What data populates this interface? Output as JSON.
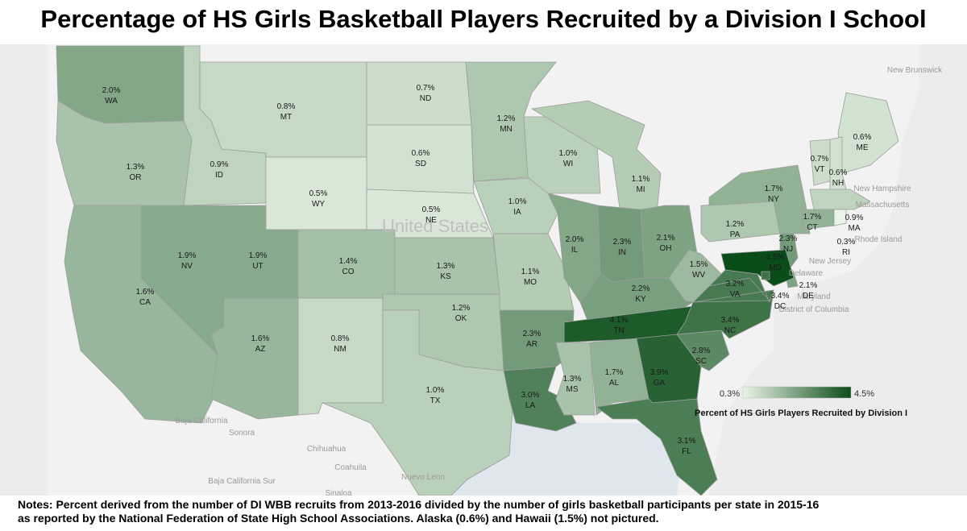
{
  "title": "Percentage of HS Girls Basketball Players Recruited by a Division I School",
  "notes": {
    "line1": "Notes: Percent derived from the number of DI WBB recruits from 2013-2016 divided by the number of girls basketball participants per state in 2015-16",
    "line2": "as reported by the National Federation of State High School Associations.  Alaska (0.6%) and Hawaii (1.5%) not pictured."
  },
  "legend": {
    "min_label": "0.3%",
    "max_label": "4.5%",
    "title": "Percent of HS Girls Players Recruited by Division I",
    "min_value": 0.3,
    "max_value": 4.5,
    "color_low": "#eaf4e6",
    "color_high": "#0b4d1a"
  },
  "background_labels": [
    "United States",
    "Baja California",
    "Sonora",
    "Chihuahua",
    "Coahuila",
    "Baja California Sur",
    "Nuevo Leon",
    "Sinaloa",
    "New Hampshire",
    "Massachusetts",
    "Rhode Island",
    "New Jersey",
    "Delaware",
    "Maryland",
    "District of Columbia",
    "New Brunswick"
  ],
  "chart_data": {
    "type": "choropleth",
    "unit": "%",
    "states": [
      {
        "abbr": "WA",
        "value": 2.0,
        "label": "2.0%"
      },
      {
        "abbr": "OR",
        "value": 1.3,
        "label": "1.3%"
      },
      {
        "abbr": "CA",
        "value": 1.6,
        "label": "1.6%"
      },
      {
        "abbr": "ID",
        "value": 0.9,
        "label": "0.9%"
      },
      {
        "abbr": "NV",
        "value": 1.9,
        "label": "1.9%"
      },
      {
        "abbr": "MT",
        "value": 0.8,
        "label": "0.8%"
      },
      {
        "abbr": "WY",
        "value": 0.5,
        "label": "0.5%"
      },
      {
        "abbr": "UT",
        "value": 1.9,
        "label": "1.9%"
      },
      {
        "abbr": "AZ",
        "value": 1.6,
        "label": "1.6%"
      },
      {
        "abbr": "CO",
        "value": 1.4,
        "label": "1.4%"
      },
      {
        "abbr": "NM",
        "value": 0.8,
        "label": "0.8%"
      },
      {
        "abbr": "ND",
        "value": 0.7,
        "label": "0.7%"
      },
      {
        "abbr": "SD",
        "value": 0.6,
        "label": "0.6%"
      },
      {
        "abbr": "NE",
        "value": 0.5,
        "label": "0.5%"
      },
      {
        "abbr": "KS",
        "value": 1.3,
        "label": "1.3%"
      },
      {
        "abbr": "OK",
        "value": 1.2,
        "label": "1.2%"
      },
      {
        "abbr": "TX",
        "value": 1.0,
        "label": "1.0%"
      },
      {
        "abbr": "MN",
        "value": 1.2,
        "label": "1.2%"
      },
      {
        "abbr": "IA",
        "value": 1.0,
        "label": "1.0%"
      },
      {
        "abbr": "MO",
        "value": 1.1,
        "label": "1.1%"
      },
      {
        "abbr": "AR",
        "value": 2.3,
        "label": "2.3%"
      },
      {
        "abbr": "LA",
        "value": 3.0,
        "label": "3.0%"
      },
      {
        "abbr": "WI",
        "value": 1.0,
        "label": "1.0%"
      },
      {
        "abbr": "IL",
        "value": 2.0,
        "label": "2.0%"
      },
      {
        "abbr": "MI",
        "value": 1.1,
        "label": "1.1%"
      },
      {
        "abbr": "IN",
        "value": 2.3,
        "label": "2.3%"
      },
      {
        "abbr": "OH",
        "value": 2.1,
        "label": "2.1%"
      },
      {
        "abbr": "KY",
        "value": 2.2,
        "label": "2.2%"
      },
      {
        "abbr": "TN",
        "value": 4.1,
        "label": "4.1%"
      },
      {
        "abbr": "MS",
        "value": 1.3,
        "label": "1.3%"
      },
      {
        "abbr": "AL",
        "value": 1.7,
        "label": "1.7%"
      },
      {
        "abbr": "GA",
        "value": 3.9,
        "label": "3.9%"
      },
      {
        "abbr": "FL",
        "value": 3.1,
        "label": "3.1%"
      },
      {
        "abbr": "SC",
        "value": 2.8,
        "label": "2.8%"
      },
      {
        "abbr": "NC",
        "value": 3.4,
        "label": "3.4%"
      },
      {
        "abbr": "VA",
        "value": 3.2,
        "label": "3.2%"
      },
      {
        "abbr": "WV",
        "value": 1.5,
        "label": "1.5%"
      },
      {
        "abbr": "PA",
        "value": 1.2,
        "label": "1.2%"
      },
      {
        "abbr": "NY",
        "value": 1.7,
        "label": "1.7%"
      },
      {
        "abbr": "ME",
        "value": 0.6,
        "label": "0.6%"
      },
      {
        "abbr": "VT",
        "value": 0.7,
        "label": "0.7%"
      },
      {
        "abbr": "NH",
        "value": 0.6,
        "label": "0.6%"
      },
      {
        "abbr": "MA",
        "value": 0.9,
        "label": "0.9%"
      },
      {
        "abbr": "CT",
        "value": 1.7,
        "label": "1.7%"
      },
      {
        "abbr": "RI",
        "value": 0.3,
        "label": "0.3%"
      },
      {
        "abbr": "NJ",
        "value": 2.3,
        "label": "2.3%"
      },
      {
        "abbr": "DE",
        "value": 2.1,
        "label": "2.1%"
      },
      {
        "abbr": "MD",
        "value": 4.5,
        "label": "4.5%"
      },
      {
        "abbr": "DC",
        "value": 3.4,
        "label": "3.4%"
      }
    ]
  }
}
